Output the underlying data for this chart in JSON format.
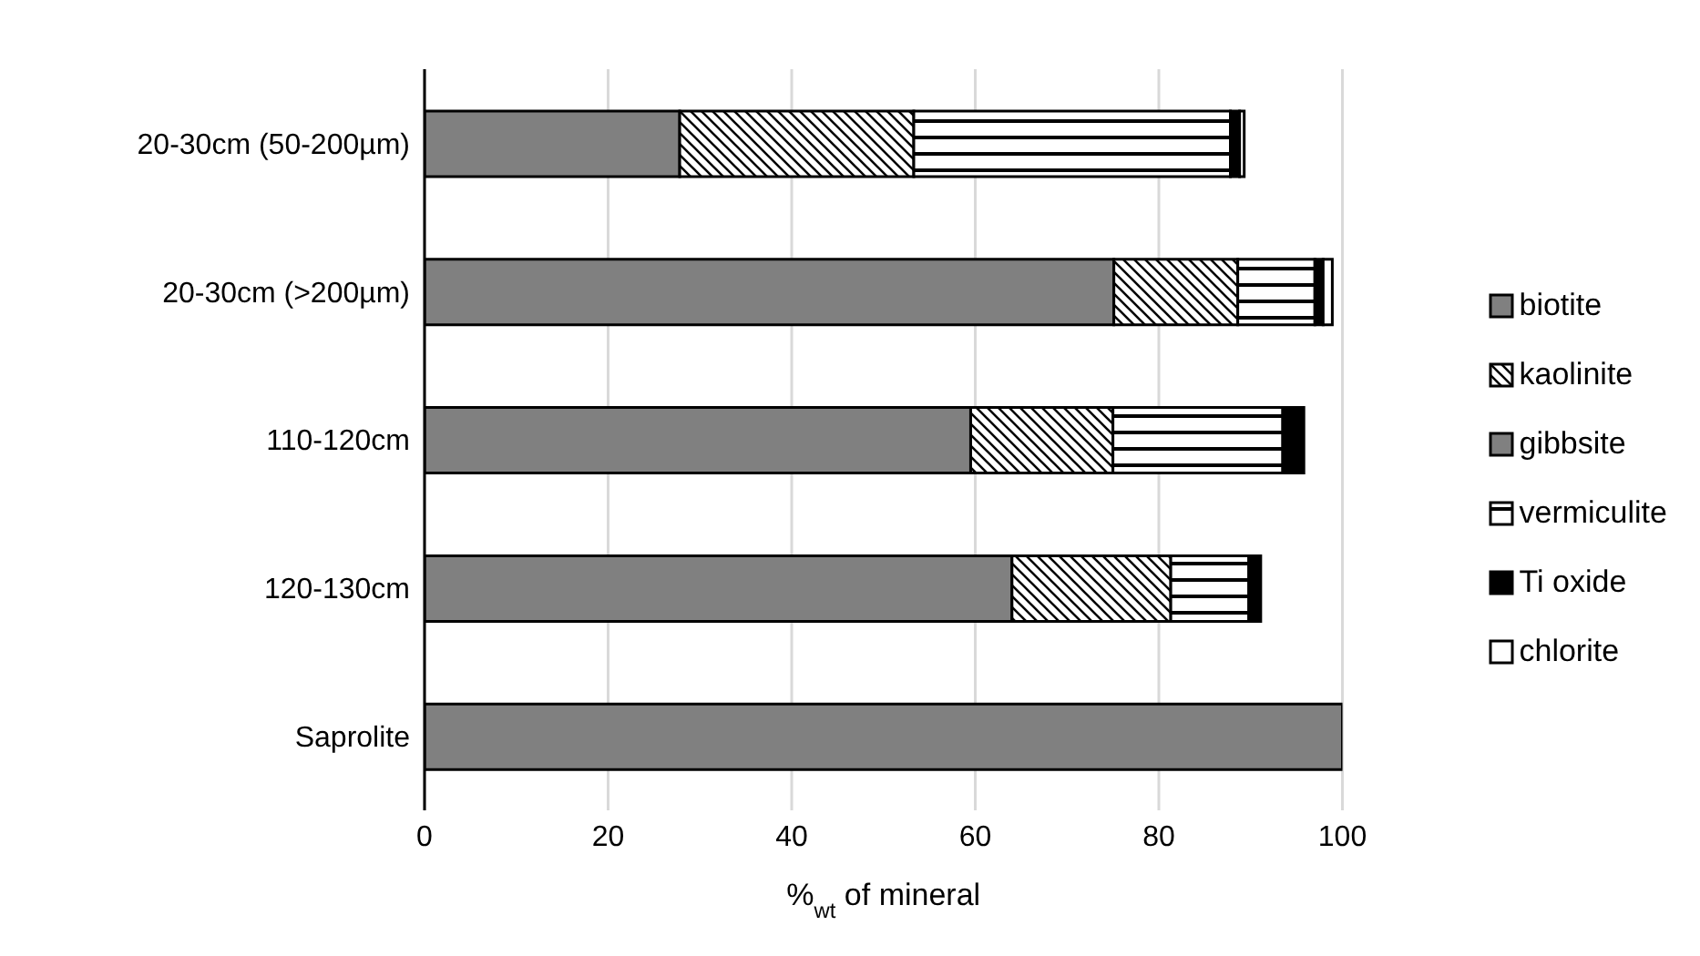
{
  "chart_data": {
    "type": "bar",
    "orientation": "horizontal",
    "stacked": true,
    "xlabel": "%$_{wt}$ of mineral",
    "categories": [
      "20-30cm (50-200µm)",
      "20-30cm (>200µm)",
      "110-120cm",
      "120-130cm",
      "Saprolite"
    ],
    "series": [
      {
        "name": "biotite",
        "color": "#808080",
        "values": [
          27.8,
          75.1,
          59.5,
          64.0,
          100
        ]
      },
      {
        "name": "kaolinite",
        "color": "#000000",
        "values": [
          25.5,
          13.5,
          15.5,
          17.3,
          0
        ]
      },
      {
        "name": "gibbsite",
        "color": "#808080",
        "values": [
          0,
          0,
          0,
          0,
          0
        ]
      },
      {
        "name": "vermiculite",
        "color": "#000000",
        "values": [
          34.5,
          8.4,
          18.5,
          8.5,
          0
        ]
      },
      {
        "name": "Ti oxide",
        "color": "#000000",
        "values": [
          1.0,
          0.9,
          2.3,
          1.3,
          0
        ]
      },
      {
        "name": "chlorite",
        "color": "#ffffff",
        "values": [
          0.5,
          1.0,
          0,
          0,
          0
        ]
      }
    ],
    "xlim": [
      0,
      100
    ],
    "xticks": [
      0,
      20,
      40,
      60,
      80,
      100
    ],
    "grid": "x",
    "legend": "right"
  }
}
